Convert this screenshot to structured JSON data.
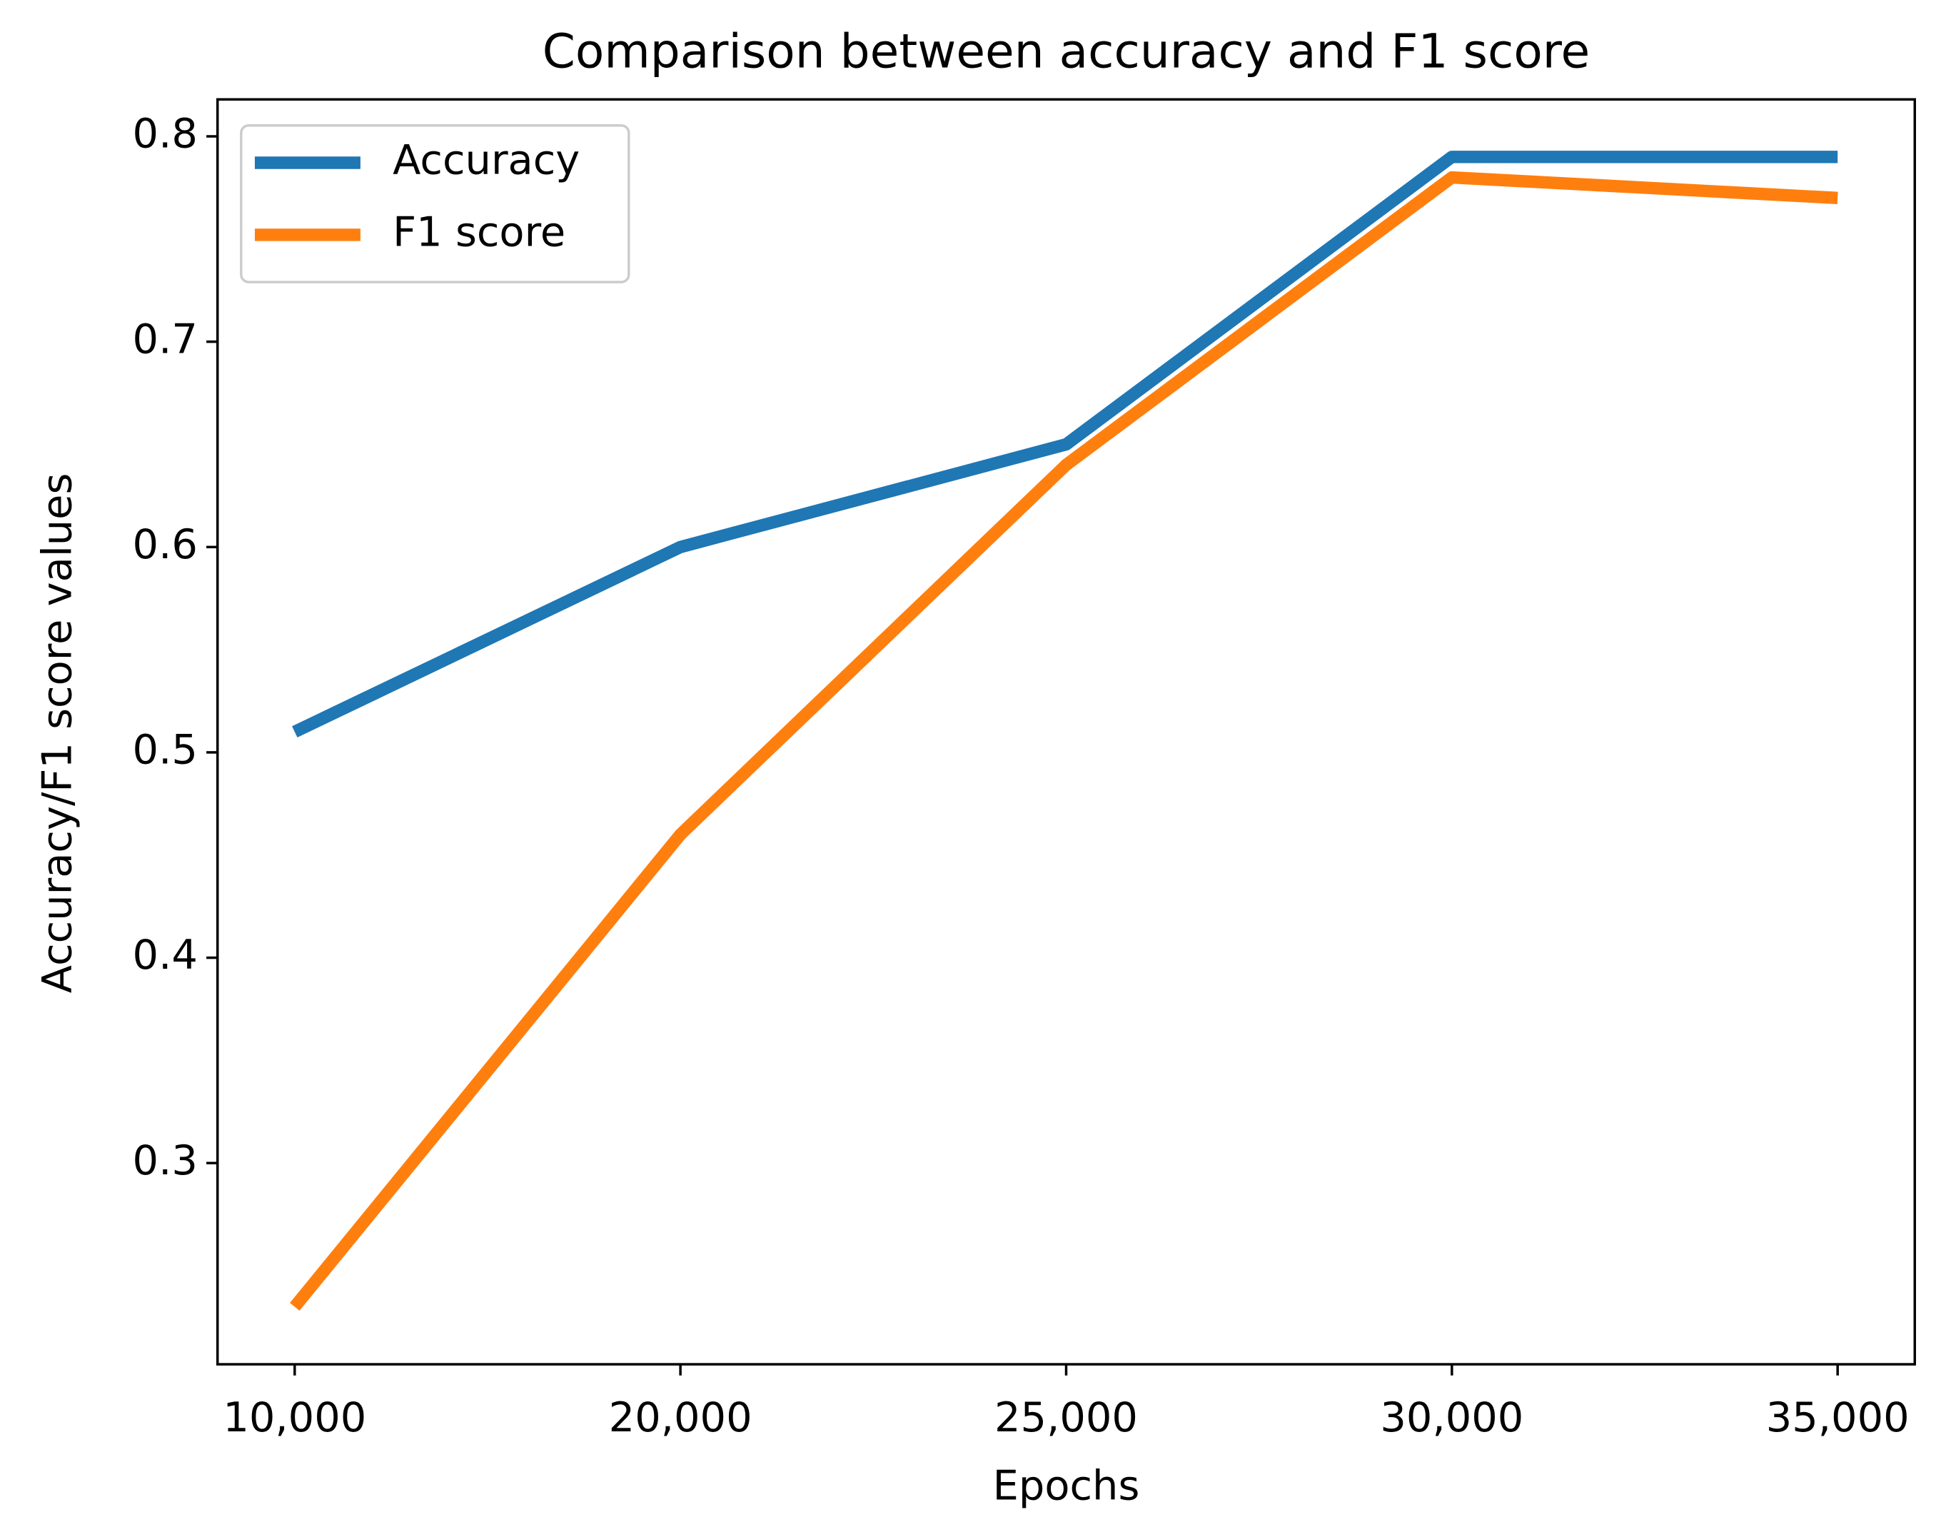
{
  "chart_data": {
    "type": "line",
    "title": "Comparison between accuracy and F1 score",
    "x_label": "Epochs",
    "y_label": "Accuracy/F1 score values",
    "categories": [
      "10,000",
      "20,000",
      "25,000",
      "30,000",
      "35,000"
    ],
    "series": [
      {
        "name": "Accuracy",
        "color": "#1f77b4",
        "values": [
          0.51,
          0.6,
          0.65,
          0.79,
          0.79
        ]
      },
      {
        "name": "F1 score",
        "color": "#ff7f0e",
        "values": [
          0.23,
          0.46,
          0.64,
          0.78,
          0.77
        ]
      }
    ],
    "ylim": [
      0.202,
      0.818
    ],
    "yticks": [
      0.3,
      0.4,
      0.5,
      0.6,
      0.7,
      0.8
    ],
    "grid": false,
    "legend": "upper left"
  }
}
